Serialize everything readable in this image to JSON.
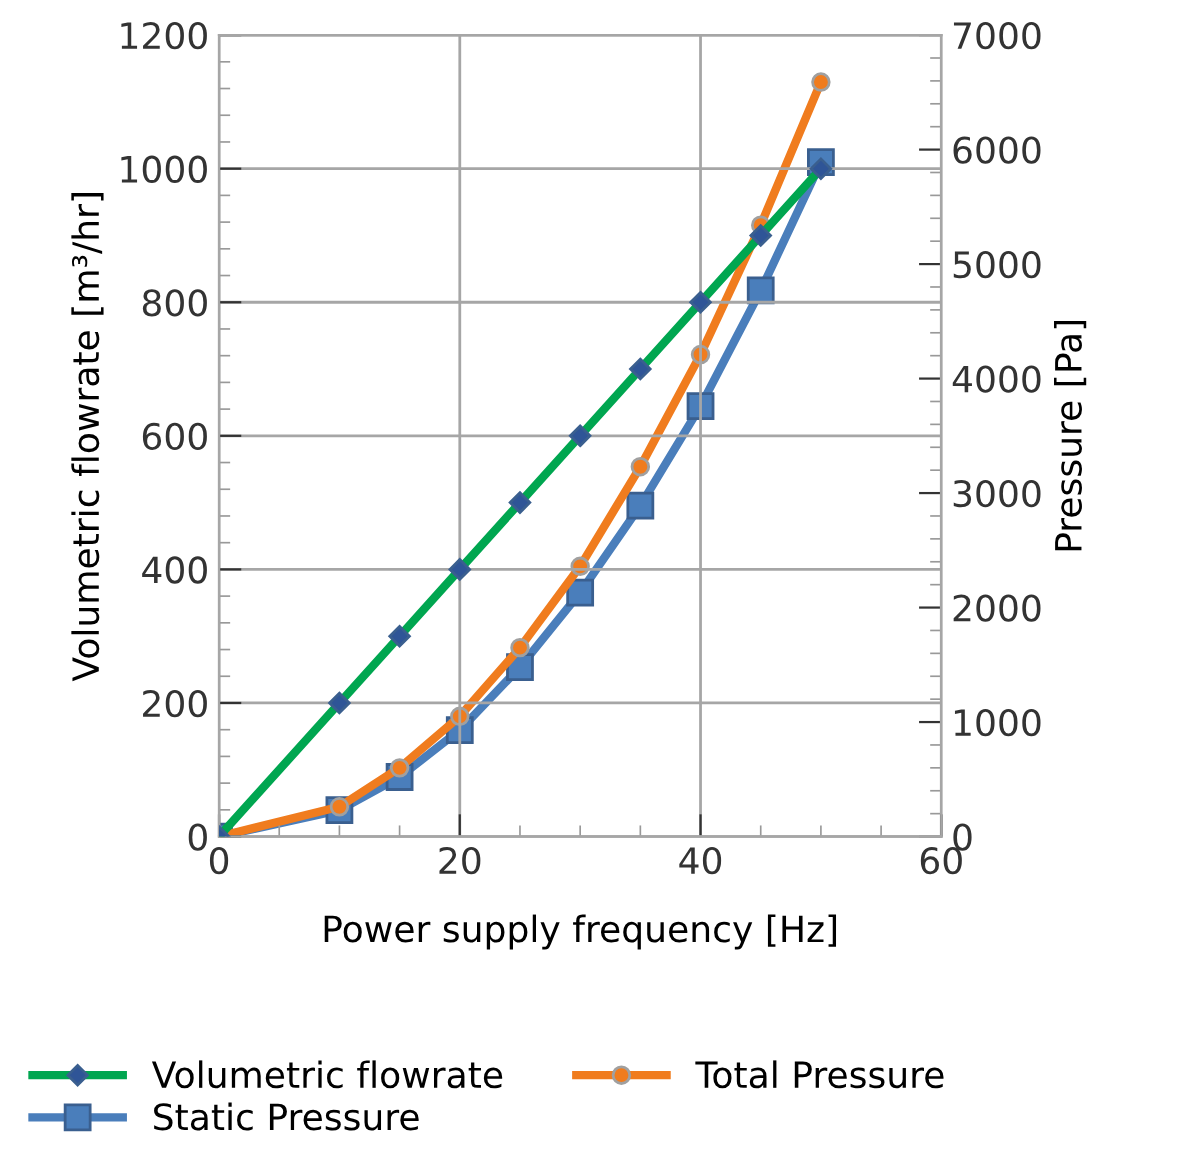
{
  "chart_data": {
    "type": "line",
    "xlabel": "Power supply frequency [Hz]",
    "ylabel": "Volumetric flowrate [m³/hr]",
    "y2label": "Pressure [Pa]",
    "x": [
      0,
      10,
      15,
      20,
      25,
      30,
      35,
      40,
      45,
      50
    ],
    "series": [
      {
        "name": "Volumetric flowrate",
        "color": "#00a650",
        "marker": "diamond",
        "values": [
          0,
          200,
          300,
          400,
          500,
          600,
          700,
          800,
          900,
          1000
        ]
      },
      {
        "name": "Static Pressure",
        "color": "#4a7ebb",
        "marker": "square",
        "axis": "y2",
        "values": [
          0,
          230,
          520,
          930,
          1480,
          2130,
          2890,
          3760,
          4770,
          5890
        ]
      },
      {
        "name": "Total Pressure",
        "color": "#f07c1e",
        "marker": "circle",
        "axis": "y2",
        "values": [
          0,
          260,
          600,
          1050,
          1650,
          2360,
          3230,
          4210,
          5340,
          6590
        ]
      }
    ],
    "xlim": [
      0,
      60
    ],
    "xticks": [
      0,
      20,
      40,
      60
    ],
    "ylim": [
      0,
      1200
    ],
    "yticks": [
      0,
      200,
      400,
      600,
      800,
      1000,
      1200
    ],
    "y2lim": [
      0,
      7000
    ],
    "y2ticks": [
      0,
      1000,
      2000,
      3000,
      4000,
      5000,
      6000,
      7000
    ],
    "grid": true,
    "legend": "bottom"
  }
}
